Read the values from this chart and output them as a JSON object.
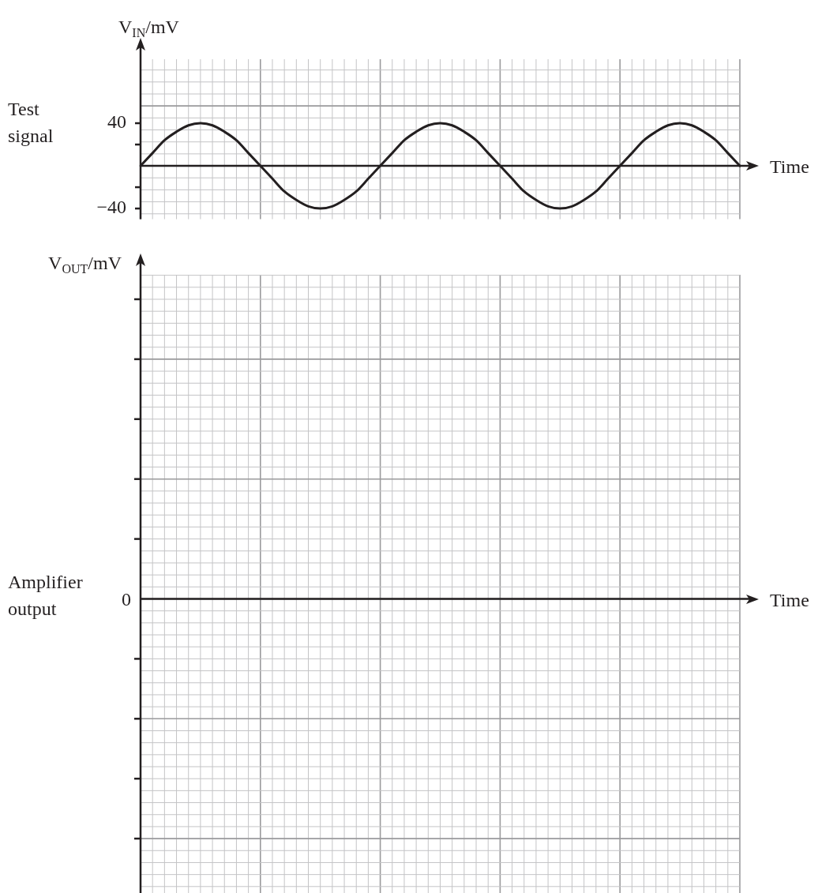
{
  "chart_data": [
    {
      "type": "line",
      "ylabel": "V$_{IN}$/mV",
      "xlabel": "Time",
      "annotations": [
        "Test signal"
      ],
      "categories": [
        null,
        null,
        null,
        null,
        null,
        null,
        null,
        null,
        null,
        null,
        null,
        null,
        null,
        null,
        null,
        null,
        null,
        null,
        null,
        null,
        null,
        null,
        null,
        null,
        null,
        null,
        null,
        null,
        null,
        null,
        null,
        null,
        null,
        null,
        null,
        null,
        null,
        null,
        null,
        null,
        null,
        null,
        null,
        null,
        null,
        null,
        null,
        null,
        null,
        null,
        null
      ],
      "series": [
        {
          "color": "#231f20",
          "values": [
            0,
            12,
            24,
            32,
            38,
            40,
            38,
            32,
            24,
            12,
            0,
            -12,
            -24,
            -32,
            -38,
            -40,
            -38,
            -32,
            -24,
            -12,
            0,
            12,
            24,
            32,
            38,
            40,
            38,
            32,
            24,
            12,
            0,
            -12,
            -24,
            -32,
            -38,
            -40,
            -38,
            -32,
            -24,
            -12,
            0,
            12,
            24,
            32,
            38,
            40,
            38,
            32,
            24,
            12,
            0
          ]
        }
      ],
      "ylim": [
        -50,
        100
      ],
      "yticks": [
        {
          "value": -40,
          "label": "−40"
        },
        {
          "value": -20,
          "label": null
        },
        {
          "value": 20,
          "label": null
        },
        40
      ],
      "grid": true,
      "tick_labels": "y",
      "legend": false,
      "marker": "none",
      "line_style": "solid"
    },
    {
      "type": "other",
      "ylabel": "V$_{OUT}$/mV",
      "xlabel": "Time",
      "annotations": [
        "Amplifier output",
        "0"
      ],
      "categories": [
        null,
        null,
        null,
        null,
        null,
        null,
        null,
        null,
        null,
        null,
        null,
        null,
        null,
        null,
        null,
        null,
        null,
        null,
        null,
        null,
        null,
        null,
        null,
        null,
        null,
        null,
        null,
        null,
        null,
        null,
        null,
        null,
        null,
        null,
        null,
        null,
        null,
        null,
        null,
        null,
        null,
        null,
        null,
        null,
        null,
        null,
        null,
        null,
        null,
        null,
        null
      ],
      "legend": false
    }
  ]
}
